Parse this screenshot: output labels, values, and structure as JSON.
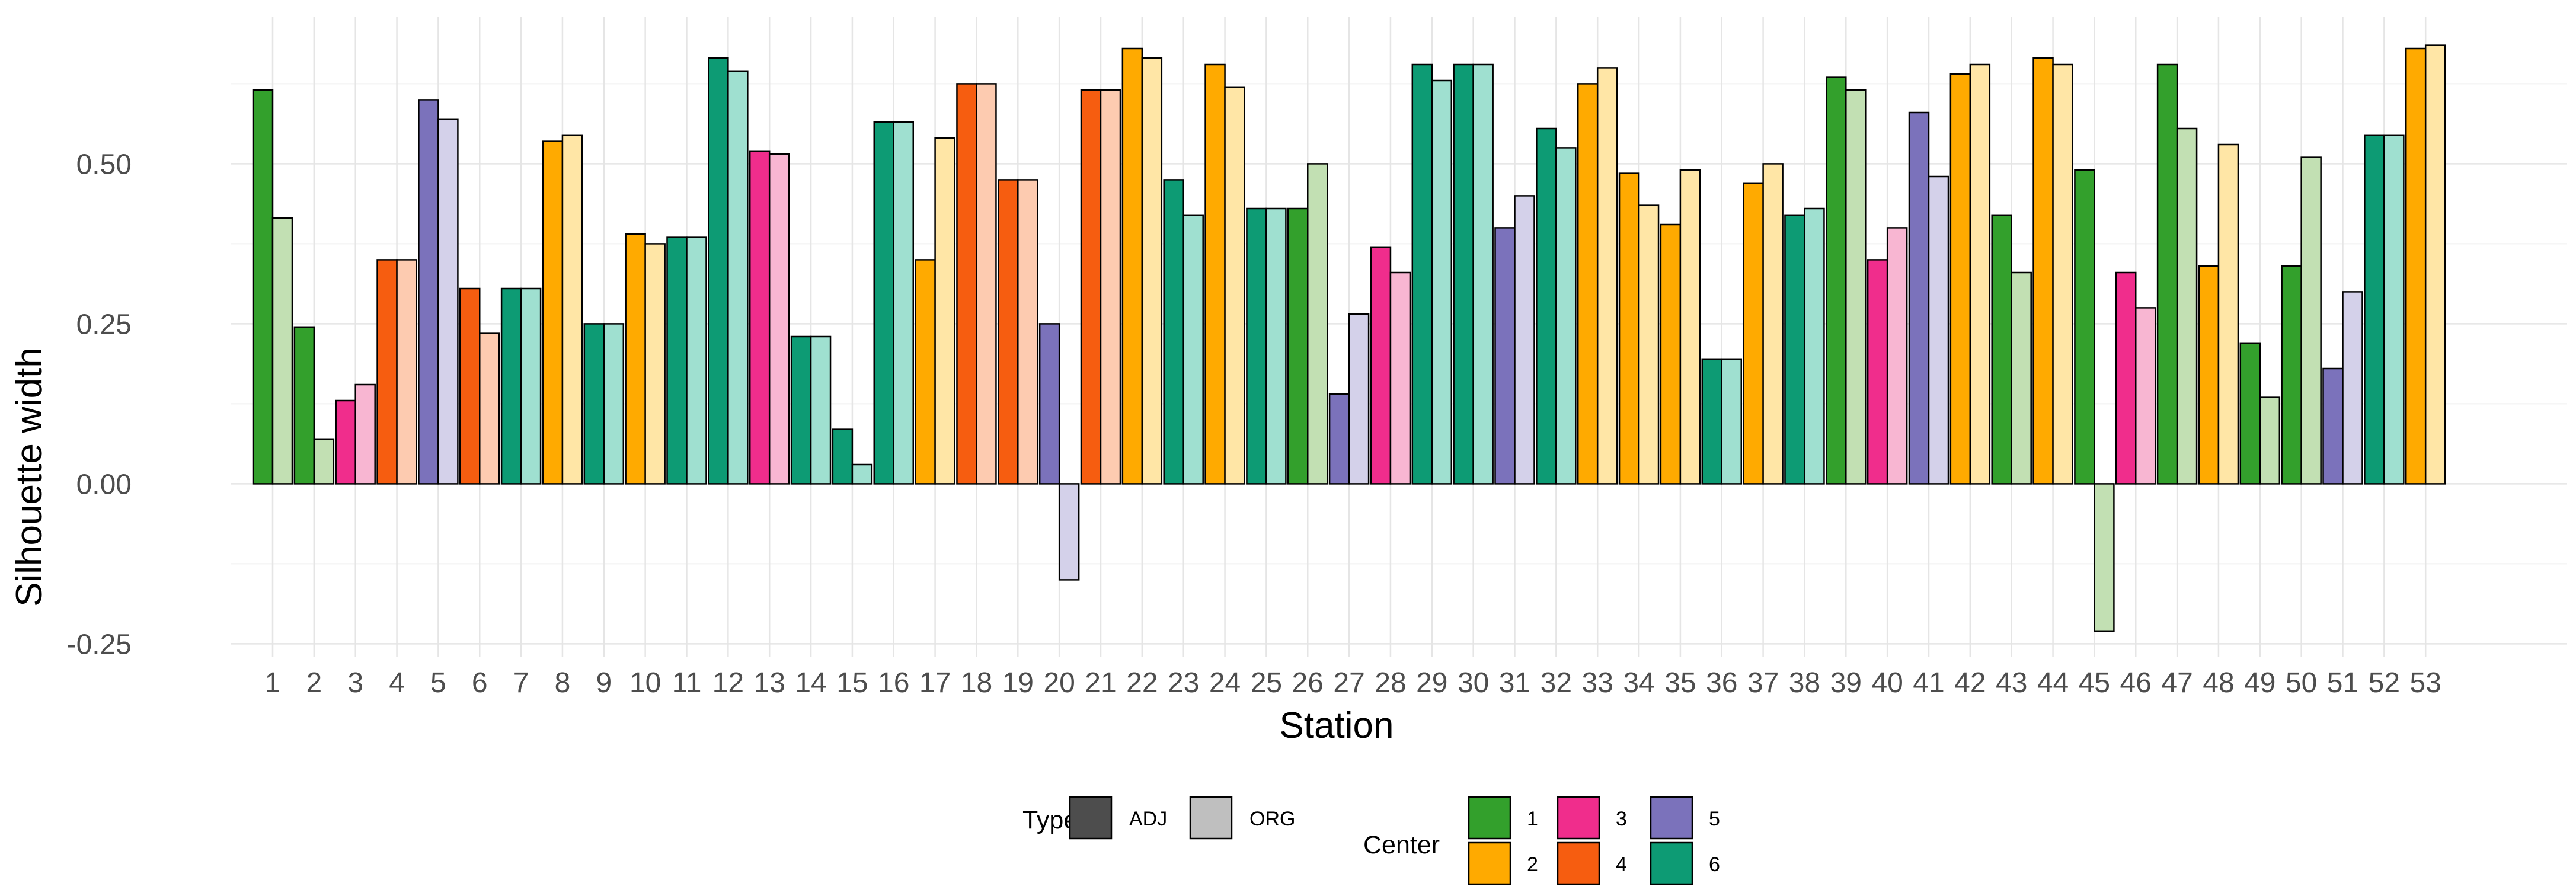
{
  "chart_data": {
    "type": "bar",
    "title": "",
    "xlabel": "Station",
    "ylabel": "Silhouette width",
    "ylim": [
      -0.27,
      0.73
    ],
    "yticks": [
      -0.25,
      0,
      0.25,
      0.5
    ],
    "ytick_labels": [
      "-0.25",
      "0.00",
      "0.25",
      "0.50"
    ],
    "grid": true,
    "categories": [
      "1",
      "2",
      "3",
      "4",
      "5",
      "6",
      "7",
      "8",
      "9",
      "10",
      "11",
      "12",
      "13",
      "14",
      "15",
      "16",
      "17",
      "18",
      "19",
      "20",
      "21",
      "22",
      "23",
      "24",
      "25",
      "26",
      "27",
      "28",
      "29",
      "30",
      "31",
      "32",
      "33",
      "34",
      "35",
      "36",
      "37",
      "38",
      "39",
      "40",
      "41",
      "42",
      "43",
      "44",
      "45",
      "46",
      "47",
      "48",
      "49",
      "50",
      "51",
      "52",
      "53"
    ],
    "center": [
      1,
      1,
      3,
      4,
      5,
      4,
      6,
      2,
      6,
      2,
      6,
      6,
      3,
      6,
      6,
      6,
      2,
      4,
      4,
      5,
      4,
      2,
      6,
      2,
      6,
      1,
      5,
      3,
      6,
      6,
      5,
      6,
      2,
      2,
      2,
      6,
      2,
      6,
      1,
      3,
      5,
      2,
      1,
      2,
      1,
      3,
      1,
      2,
      1,
      1,
      5,
      6,
      2
    ],
    "series": [
      {
        "name": "ADJ",
        "values": [
          0.615,
          0.245,
          0.13,
          0.35,
          0.6,
          0.305,
          0.305,
          0.535,
          0.25,
          0.39,
          0.385,
          0.665,
          0.52,
          0.23,
          0.085,
          0.565,
          0.35,
          0.625,
          0.475,
          0.25,
          0.615,
          0.68,
          0.475,
          0.655,
          0.43,
          0.43,
          0.14,
          0.37,
          0.655,
          0.655,
          0.4,
          0.555,
          0.625,
          0.485,
          0.405,
          0.195,
          0.47,
          0.42,
          0.635,
          0.35,
          0.58,
          0.64,
          0.42,
          0.665,
          0.49,
          0.33,
          0.655,
          0.34,
          0.22,
          0.34,
          0.18,
          0.545,
          0.68
        ]
      },
      {
        "name": "ORG",
        "values": [
          0.415,
          0.07,
          0.155,
          0.35,
          0.57,
          0.235,
          0.305,
          0.545,
          0.25,
          0.375,
          0.385,
          0.645,
          0.515,
          0.23,
          0.03,
          0.565,
          0.54,
          0.625,
          0.475,
          -0.15,
          0.615,
          0.665,
          0.42,
          0.62,
          0.43,
          0.5,
          0.265,
          0.33,
          0.63,
          0.655,
          0.45,
          0.525,
          0.65,
          0.435,
          0.49,
          0.195,
          0.5,
          0.43,
          0.615,
          0.4,
          0.48,
          0.655,
          0.33,
          0.655,
          -0.23,
          0.275,
          0.555,
          0.53,
          0.135,
          0.51,
          0.3,
          0.545,
          0.685
        ]
      }
    ],
    "legend": {
      "position": "bottom",
      "type_title": "Type",
      "type_entries": [
        {
          "label": "ADJ",
          "color": "#4d4d4d"
        },
        {
          "label": "ORG",
          "color": "#bfbfbf"
        }
      ],
      "center_title": "Center",
      "center_entries": [
        {
          "label": "1",
          "color": "#33a02c"
        },
        {
          "label": "2",
          "color": "#ffaa00"
        },
        {
          "label": "3",
          "color": "#f02d8c"
        },
        {
          "label": "4",
          "color": "#f65d10"
        },
        {
          "label": "5",
          "color": "#7b72bb"
        },
        {
          "label": "6",
          "color": "#0d9b74"
        }
      ]
    },
    "colors": {
      "adj": {
        "1": "#33a02c",
        "2": "#ffaa00",
        "3": "#f02d8c",
        "4": "#f65d10",
        "5": "#7b72bb",
        "6": "#0d9b74"
      },
      "org": {
        "1": "#c2e0b3",
        "2": "#ffe6a6",
        "3": "#f8b6d2",
        "4": "#fdcbb0",
        "5": "#d4d1ea",
        "6": "#9fe0d0"
      },
      "grid_major": "#e5e5e5",
      "grid_minor": "#f1f1f1",
      "bar_outline": "#000000"
    }
  }
}
